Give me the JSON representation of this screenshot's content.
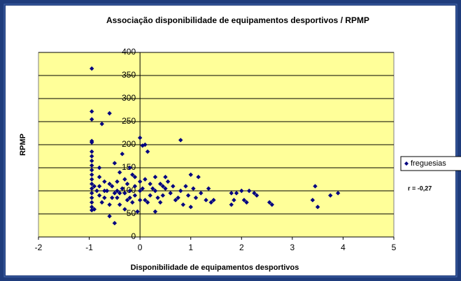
{
  "chart_data": {
    "type": "scatter",
    "title": "Associação disponibilidade de equipamentos desportivos / RPMP",
    "x_label": "Disponibilidade de equipamentos desportivos",
    "y_label": "RPMP",
    "annotation": "r = -0,27",
    "legend": "right",
    "grid": true,
    "xlim": [
      -2,
      5
    ],
    "xticks": [
      -2,
      -1,
      0,
      1,
      2,
      3,
      4,
      5
    ],
    "ylim": [
      0,
      400
    ],
    "yticks": [
      0,
      50,
      100,
      150,
      200,
      250,
      300,
      350,
      400
    ],
    "x": [
      -0.95,
      -0.95,
      -0.95,
      -0.75,
      -0.6,
      -0.95,
      -0.95,
      0,
      0.1,
      0.05,
      -0.95,
      -0.95,
      -0.95,
      -0.95,
      -0.95,
      -0.95,
      -0.95,
      -0.95,
      -0.95,
      -0.95,
      -0.95,
      -0.95,
      -0.95,
      -0.95,
      -0.9,
      -0.8,
      -0.8,
      -0.8,
      -0.8,
      -0.75,
      -0.7,
      -0.7,
      -0.65,
      -0.6,
      -0.6,
      -0.55,
      -0.5,
      -0.5,
      -0.5,
      -0.45,
      -0.45,
      -0.4,
      -0.4,
      -0.35,
      -0.35,
      -0.3,
      -0.3,
      -0.3,
      -0.25,
      -0.25,
      -0.2,
      -0.2,
      -0.15,
      -0.15,
      -0.1,
      -0.1,
      -0.05,
      0,
      0,
      0,
      0.05,
      0.1,
      0.1,
      0.15,
      0.15,
      0.2,
      0.25,
      0.3,
      0.3,
      0.3,
      0.35,
      0.4,
      0.4,
      0.45,
      0.5,
      0.5,
      0.55,
      0.6,
      0.65,
      0.7,
      0.75,
      0.8,
      0.8,
      0.85,
      0.9,
      0.95,
      1.0,
      1.0,
      1.05,
      1.1,
      1.15,
      1.2,
      1.3,
      1.35,
      1.4,
      1.45,
      1.8,
      1.8,
      1.85,
      1.9,
      2.0,
      2.05,
      2.1,
      2.15,
      2.25,
      2.3,
      2.55,
      2.6,
      3.4,
      3.45,
      3.5,
      3.75,
      3.9,
      -0.9,
      -0.85,
      -0.7,
      -0.6,
      -0.55,
      -0.45,
      -0.4,
      -0.2,
      0.2,
      -0.1,
      0.45
    ],
    "series": [
      {
        "name": "freguesias",
        "color": "#000080",
        "values": [
          365,
          272,
          255,
          245,
          268,
          208,
          205,
          215,
          200,
          198,
          185,
          175,
          165,
          155,
          145,
          135,
          125,
          115,
          105,
          95,
          85,
          75,
          65,
          58,
          60,
          150,
          130,
          110,
          90,
          75,
          85,
          120,
          100,
          70,
          45,
          110,
          95,
          30,
          160,
          120,
          85,
          140,
          70,
          105,
          180,
          125,
          95,
          60,
          115,
          80,
          150,
          100,
          135,
          75,
          110,
          90,
          55,
          120,
          100,
          80,
          105,
          125,
          80,
          75,
          185,
          115,
          105,
          100,
          130,
          55,
          85,
          115,
          75,
          90,
          130,
          105,
          120,
          95,
          110,
          80,
          85,
          210,
          100,
          70,
          110,
          90,
          65,
          135,
          105,
          85,
          130,
          95,
          80,
          105,
          75,
          80,
          95,
          70,
          80,
          95,
          100,
          80,
          75,
          100,
          95,
          90,
          75,
          70,
          80,
          110,
          65,
          90,
          95,
          110,
          100,
          100,
          115,
          85,
          100,
          95,
          85,
          90,
          130,
          110
        ]
      }
    ]
  }
}
